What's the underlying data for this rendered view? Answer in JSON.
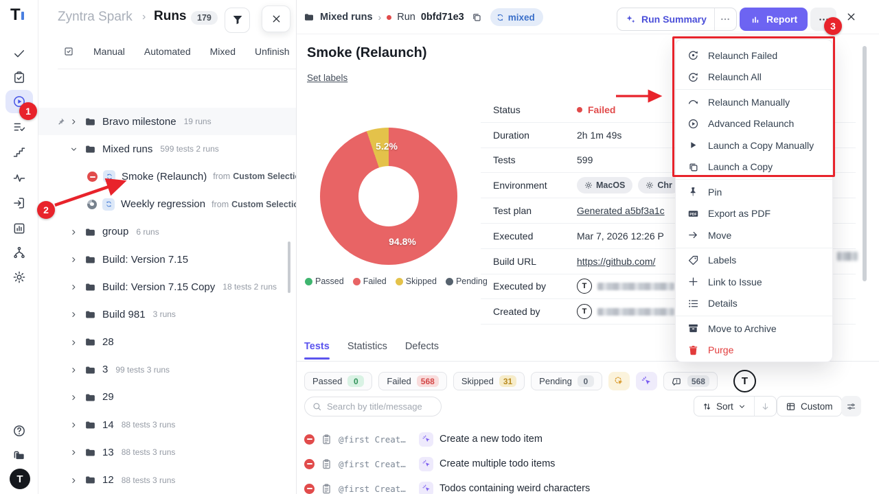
{
  "logo_letter": "T",
  "colors": {
    "accent": "#6158f0",
    "annotation": "#e8232b",
    "failed": "#e14a4a",
    "link_blue": "#3a6fc9"
  },
  "annotations": {
    "step1": "1",
    "step2": "2",
    "step3": "3"
  },
  "sidebar": {
    "items": [
      {
        "icon": "check",
        "name": "tests"
      },
      {
        "icon": "clipboard-check",
        "name": "suites"
      },
      {
        "icon": "play-circle",
        "name": "runs",
        "active": true
      },
      {
        "icon": "list-check",
        "name": "plans"
      },
      {
        "icon": "steps",
        "name": "milestones"
      },
      {
        "icon": "pulse",
        "name": "activity"
      },
      {
        "icon": "import",
        "name": "import"
      },
      {
        "icon": "chart-box",
        "name": "analytics"
      },
      {
        "icon": "branch",
        "name": "branches"
      },
      {
        "icon": "gear",
        "name": "settings"
      }
    ],
    "bottom": [
      {
        "icon": "help",
        "name": "help"
      },
      {
        "icon": "folders",
        "name": "projects"
      }
    ]
  },
  "tree": {
    "project": "Zyntra Spark",
    "sep": "›",
    "section": "Runs",
    "count": "179",
    "tabs": [
      "Manual",
      "Automated",
      "Mixed",
      "Unfinish"
    ],
    "items": [
      {
        "pin": true,
        "chevron": "right",
        "icon": "folder",
        "label": "Bravo milestone",
        "meta": "19 runs",
        "hl": true
      },
      {
        "chevron": "down",
        "icon": "folder",
        "label": "Mixed runs",
        "meta": "599 tests  2 runs"
      },
      {
        "indent": 1,
        "status": "failed",
        "sync": true,
        "label": "Smoke (Relaunch)",
        "from_prefix": "from",
        "from": "Custom Selectio"
      },
      {
        "indent": 1,
        "status": "done",
        "sync": true,
        "label": "Weekly regression",
        "from_prefix": "from",
        "from": "Custom Selectio"
      },
      {
        "chevron": "right",
        "icon": "folder",
        "label": "group",
        "meta": "6 runs"
      },
      {
        "chevron": "right",
        "icon": "folder",
        "label": "Build: Version 7.15"
      },
      {
        "chevron": "right",
        "icon": "folder",
        "label": "Build: Version 7.15 Copy",
        "meta": "18 tests  2 runs"
      },
      {
        "chevron": "right",
        "icon": "folder",
        "label": "Build 981",
        "meta": "3 runs"
      },
      {
        "chevron": "right",
        "icon": "folder",
        "label": "28"
      },
      {
        "chevron": "right",
        "icon": "folder",
        "label": "3",
        "meta": "99 tests  3 runs"
      },
      {
        "chevron": "right",
        "icon": "folder",
        "label": "29"
      },
      {
        "chevron": "right",
        "icon": "folder",
        "label": "14",
        "meta": "88 tests  3 runs"
      },
      {
        "chevron": "right",
        "icon": "folder",
        "label": "13",
        "meta": "88 tests  3 runs"
      },
      {
        "chevron": "right",
        "icon": "folder",
        "label": "12",
        "meta": "88 tests  3 runs"
      }
    ]
  },
  "run": {
    "breadcrumb": {
      "folder": "Mixed runs",
      "sep": "›",
      "run_prefix": "Run",
      "run_id": "0bfd71e3",
      "badge": "mixed"
    },
    "actions": {
      "run_summary": "Run Summary",
      "report": "Report"
    },
    "title": "Smoke (Relaunch)",
    "set_labels": "Set labels",
    "details": [
      {
        "label": "Status",
        "type": "status",
        "value": "Failed"
      },
      {
        "label": "Duration",
        "value": "2h 1m 49s"
      },
      {
        "label": "Tests",
        "value": "599"
      },
      {
        "label": "Environment",
        "type": "env",
        "chips": [
          "MacOS",
          "Chr"
        ]
      },
      {
        "label": "Test plan",
        "type": "link",
        "value": "Generated a5bf3a1c"
      },
      {
        "label": "Executed",
        "value": "Mar 7, 2026 12:26 P"
      },
      {
        "label": "Build URL",
        "type": "link",
        "value": "https://github.com/"
      },
      {
        "label": "Executed by",
        "type": "user"
      },
      {
        "label": "Created by",
        "type": "user"
      }
    ],
    "tabs": [
      {
        "label": "Tests",
        "active": true
      },
      {
        "label": "Statistics"
      },
      {
        "label": "Defects"
      }
    ],
    "filters": [
      {
        "label": "Passed",
        "count": "0",
        "scheme": "green"
      },
      {
        "label": "Failed",
        "count": "568",
        "scheme": "red"
      },
      {
        "label": "Skipped",
        "count": "31",
        "scheme": "yellow"
      },
      {
        "label": "Pending",
        "count": "0",
        "scheme": "gray"
      }
    ],
    "icon_filters": [
      {
        "icon": "auto-click",
        "color": "orange",
        "name": "auto-run-filter"
      },
      {
        "icon": "pointer-click",
        "color": "purple",
        "name": "manual-click-filter"
      }
    ],
    "comments": {
      "count": "568"
    },
    "search_placeholder": "Search by title/message",
    "sort_label": "Sort",
    "custom_label": "Custom",
    "tests": [
      {
        "status": "failed",
        "tag": "@first Creat…",
        "title": "Create a new todo item"
      },
      {
        "status": "failed",
        "tag": "@first Creat…",
        "title": "Create multiple todo items"
      },
      {
        "status": "failed",
        "tag": "@first Creat…",
        "title": "Todos containing weird characters"
      }
    ]
  },
  "chart_data": {
    "type": "pie",
    "donut": true,
    "categories": [
      "Passed",
      "Failed",
      "Skipped",
      "Pending"
    ],
    "values": [
      0,
      94.8,
      5.2,
      0
    ],
    "unit": "%",
    "colors": [
      "#3fb56f",
      "#e86465",
      "#e4c24a",
      "#56626e"
    ],
    "slice_labels": [
      "",
      "94.8%",
      "5.2%",
      ""
    ],
    "legend_position": "bottom"
  },
  "menu": {
    "items": [
      {
        "icon": "relaunch-failed",
        "label": "Relaunch Failed"
      },
      {
        "icon": "relaunch-all",
        "label": "Relaunch All",
        "divider_after": true
      },
      {
        "icon": "relaunch-manually",
        "label": "Relaunch Manually"
      },
      {
        "icon": "advanced-relaunch",
        "label": "Advanced Relaunch"
      },
      {
        "icon": "launch-copy-manually",
        "label": "Launch a Copy Manually"
      },
      {
        "icon": "launch-copy",
        "label": "Launch a Copy",
        "divider_after": true
      },
      {
        "icon": "pin-solid",
        "label": "Pin"
      },
      {
        "icon": "export-pdf",
        "label": "Export as PDF"
      },
      {
        "icon": "move",
        "label": "Move",
        "divider_after": true
      },
      {
        "icon": "labels",
        "label": "Labels"
      },
      {
        "icon": "link-issue",
        "label": "Link to Issue"
      },
      {
        "icon": "details",
        "label": "Details",
        "divider_after": true
      },
      {
        "icon": "archive",
        "label": "Move to Archive"
      },
      {
        "icon": "purge",
        "label": "Purge",
        "danger": true
      }
    ]
  }
}
